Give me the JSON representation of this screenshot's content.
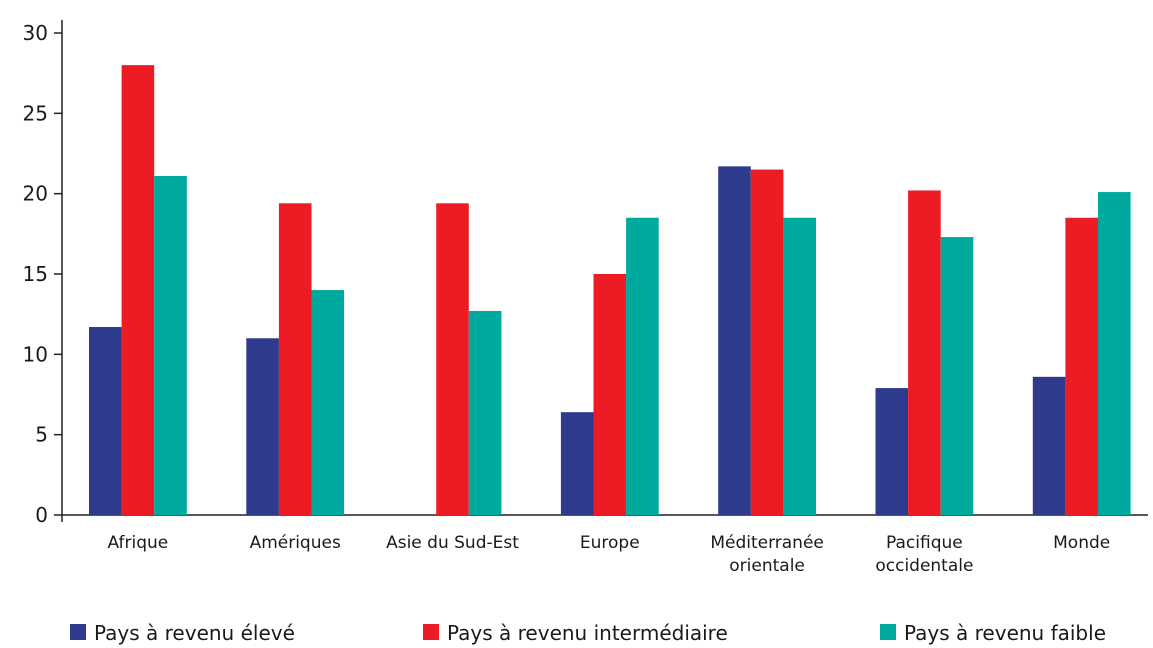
{
  "chart_data": {
    "type": "bar",
    "title": "",
    "xlabel": "",
    "ylabel": "",
    "ylim": [
      0,
      30
    ],
    "yticks": [
      0,
      5,
      10,
      15,
      20,
      25,
      30
    ],
    "grid": false,
    "legend_position": "bottom",
    "categories": [
      [
        "Afrique"
      ],
      [
        "Amériques"
      ],
      [
        "Asie du Sud-Est"
      ],
      [
        "Europe"
      ],
      [
        "Méditerranée",
        "orientale"
      ],
      [
        "Pacifique",
        "occidentale"
      ],
      [
        "Monde"
      ]
    ],
    "series": [
      {
        "name": "Pays à revenu élevé",
        "color": "#2e3a8c",
        "values": [
          11.7,
          11.0,
          null,
          6.4,
          21.7,
          7.9,
          8.6
        ]
      },
      {
        "name": "Pays à revenu intermédiaire",
        "color": "#ed1c24",
        "values": [
          28.0,
          19.4,
          19.4,
          15.0,
          21.5,
          20.2,
          18.5
        ]
      },
      {
        "name": "Pays à revenu faible",
        "color": "#00a99d",
        "values": [
          21.1,
          14.0,
          12.7,
          18.5,
          18.5,
          17.3,
          20.1
        ]
      }
    ]
  }
}
